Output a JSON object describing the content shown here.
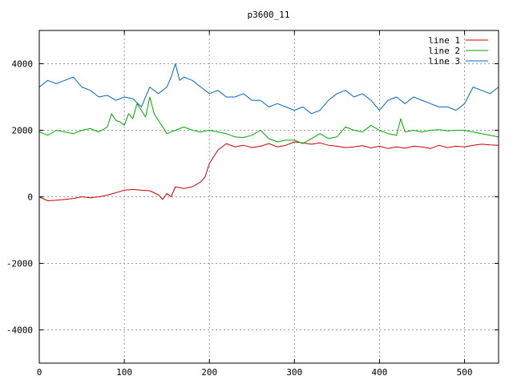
{
  "chart_data": {
    "type": "line",
    "title": "p3600_11",
    "xlabel": "",
    "ylabel": "",
    "xlim": [
      0,
      540
    ],
    "ylim": [
      -5000,
      5000
    ],
    "xticks": [
      0,
      100,
      200,
      300,
      400,
      500
    ],
    "yticks": [
      -4000,
      -2000,
      0,
      2000,
      4000
    ],
    "grid": true,
    "legend_position": "top-right",
    "series": [
      {
        "name": "line 1",
        "color": "#cc0000",
        "x": [
          0,
          10,
          20,
          30,
          40,
          50,
          60,
          70,
          80,
          90,
          100,
          110,
          120,
          130,
          140,
          145,
          150,
          155,
          160,
          170,
          180,
          190,
          195,
          200,
          205,
          210,
          220,
          230,
          240,
          250,
          260,
          270,
          280,
          290,
          300,
          310,
          320,
          330,
          340,
          350,
          360,
          370,
          380,
          390,
          400,
          410,
          420,
          430,
          440,
          450,
          460,
          470,
          480,
          490,
          500,
          510,
          520,
          530,
          540
        ],
        "y": [
          0,
          -120,
          -100,
          -80,
          -50,
          0,
          -30,
          0,
          50,
          120,
          200,
          220,
          200,
          180,
          60,
          -80,
          100,
          0,
          300,
          250,
          300,
          450,
          600,
          1000,
          1200,
          1400,
          1600,
          1500,
          1550,
          1480,
          1520,
          1600,
          1500,
          1550,
          1650,
          1620,
          1580,
          1620,
          1550,
          1520,
          1480,
          1500,
          1540,
          1470,
          1520,
          1450,
          1500,
          1460,
          1520,
          1500,
          1450,
          1550,
          1480,
          1520,
          1500,
          1550,
          1580,
          1560,
          1550
        ]
      },
      {
        "name": "line 2",
        "color": "#00aa00",
        "x": [
          0,
          10,
          20,
          30,
          40,
          50,
          60,
          70,
          80,
          85,
          90,
          95,
          100,
          105,
          110,
          115,
          120,
          125,
          130,
          135,
          140,
          150,
          160,
          170,
          180,
          190,
          200,
          210,
          220,
          230,
          240,
          250,
          260,
          270,
          280,
          290,
          300,
          310,
          320,
          330,
          340,
          350,
          360,
          370,
          380,
          390,
          400,
          410,
          420,
          425,
          430,
          440,
          450,
          460,
          470,
          480,
          490,
          500,
          510,
          520,
          530,
          540
        ],
        "y": [
          1950,
          1850,
          2000,
          1950,
          1900,
          2000,
          2050,
          1950,
          2100,
          2500,
          2300,
          2250,
          2150,
          2500,
          2350,
          2800,
          2600,
          2400,
          3000,
          2500,
          2300,
          1900,
          2000,
          2100,
          2000,
          1950,
          2000,
          1950,
          1900,
          1800,
          1780,
          1850,
          2000,
          1750,
          1650,
          1700,
          1700,
          1600,
          1750,
          1900,
          1750,
          1800,
          2100,
          2000,
          1950,
          2150,
          2000,
          1900,
          1850,
          2350,
          1950,
          2000,
          1950,
          2000,
          2020,
          1980,
          2000,
          2000,
          1950,
          1900,
          1850,
          1800
        ]
      },
      {
        "name": "line 3",
        "color": "#0066cc",
        "x": [
          0,
          10,
          20,
          30,
          40,
          50,
          60,
          70,
          80,
          90,
          100,
          110,
          120,
          130,
          140,
          150,
          155,
          160,
          165,
          170,
          180,
          190,
          200,
          210,
          220,
          230,
          240,
          250,
          260,
          270,
          280,
          290,
          300,
          310,
          320,
          330,
          340,
          350,
          360,
          370,
          380,
          390,
          400,
          410,
          420,
          430,
          440,
          450,
          460,
          470,
          480,
          490,
          500,
          510,
          520,
          530,
          540
        ],
        "y": [
          3300,
          3500,
          3400,
          3500,
          3600,
          3300,
          3200,
          3000,
          3050,
          2900,
          3000,
          2950,
          2700,
          3300,
          3100,
          3300,
          3600,
          4000,
          3500,
          3600,
          3500,
          3300,
          3100,
          3200,
          3000,
          3000,
          3100,
          2900,
          2900,
          2700,
          2800,
          2700,
          2600,
          2700,
          2500,
          2600,
          2900,
          3100,
          3200,
          3000,
          3100,
          2900,
          2600,
          2900,
          3000,
          2800,
          3000,
          2900,
          2800,
          2700,
          2700,
          2600,
          2800,
          3300,
          3200,
          3100,
          3300
        ]
      }
    ]
  }
}
